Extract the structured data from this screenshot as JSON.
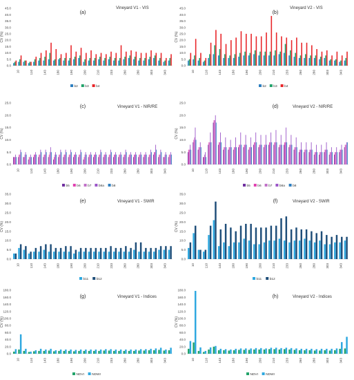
{
  "chart_data": [
    {
      "type": "bar",
      "label": "(a)",
      "title": "Vineyard V1  - VIS",
      "ylabel": "CV (%)",
      "ylim": [
        0,
        45
      ],
      "yticks": [
        "0.0",
        "5.0",
        "10.0",
        "15.0",
        "20.0",
        "25.0",
        "30.0",
        "35.0",
        "40.0",
        "45.0"
      ],
      "x_tick_labels": [
        "10",
        "110",
        "143",
        "180",
        "190",
        "200",
        "210",
        "233",
        "260",
        "280",
        "303",
        "343"
      ],
      "grid": false,
      "legend": "bottom",
      "series": [
        {
          "name": "b2",
          "color": "#2e7fc0",
          "values": [
            2,
            3,
            3,
            2,
            3,
            4,
            4,
            5,
            4,
            5,
            4,
            4,
            5,
            6,
            3,
            4,
            4,
            5,
            4,
            5,
            4,
            4,
            5,
            6,
            5,
            4,
            4,
            5,
            6,
            4,
            3,
            4
          ]
        },
        {
          "name": "b3",
          "color": "#22a36a",
          "values": [
            3,
            5,
            4,
            3,
            5,
            6,
            7,
            10,
            5,
            6,
            6,
            6,
            7,
            8,
            5,
            6,
            6,
            7,
            6,
            7,
            6,
            6,
            7,
            8,
            7,
            6,
            6,
            7,
            8,
            6,
            4,
            6
          ]
        },
        {
          "name": "b4",
          "color": "#e8262a",
          "values": [
            4,
            8,
            4,
            3,
            7,
            10,
            12,
            18,
            13,
            9,
            10,
            16,
            11,
            14,
            10,
            12,
            9,
            10,
            9,
            11,
            10,
            16,
            11,
            12,
            11,
            10,
            10,
            12,
            10,
            10,
            6,
            9
          ]
        }
      ]
    },
    {
      "type": "bar",
      "label": "(b)",
      "title": "Vineyard V2  - VIS",
      "ylabel": "CV (%)",
      "ylim": [
        0,
        45
      ],
      "yticks": [
        "0.0",
        "5.0",
        "10.0",
        "15.0",
        "20.0",
        "25.0",
        "30.0",
        "35.0",
        "40.0",
        "45.0"
      ],
      "x_tick_labels": [
        "10",
        "110",
        "143",
        "180",
        "190",
        "200",
        "210",
        "233",
        "260",
        "280",
        "303",
        "343"
      ],
      "grid": false,
      "legend": "bottom",
      "series": [
        {
          "name": "b2",
          "color": "#2e7fc0",
          "values": [
            4,
            5,
            4,
            3,
            6,
            9,
            8,
            6,
            6,
            6,
            7,
            8,
            8,
            9,
            8,
            8,
            8,
            8,
            9,
            10,
            8,
            7,
            6,
            6,
            6,
            6,
            5,
            6,
            4,
            4,
            3,
            4
          ]
        },
        {
          "name": "b3",
          "color": "#22a36a",
          "values": [
            5,
            8,
            6,
            4,
            9,
            16,
            13,
            9,
            8,
            9,
            10,
            11,
            10,
            12,
            11,
            11,
            11,
            12,
            11,
            17,
            12,
            10,
            8,
            9,
            8,
            8,
            7,
            8,
            5,
            5,
            4,
            6
          ]
        },
        {
          "name": "b4",
          "color": "#e8262a",
          "values": [
            10,
            21,
            10,
            6,
            18,
            28,
            25,
            17,
            20,
            22,
            27,
            25,
            25,
            23,
            23,
            26,
            39,
            26,
            23,
            22,
            20,
            22,
            18,
            18,
            16,
            13,
            11,
            12,
            8,
            11,
            8,
            11
          ]
        }
      ]
    },
    {
      "type": "bar",
      "label": "(c)",
      "title": "Vineyard V1 - NIR/RE",
      "ylabel": "CV (%)",
      "ylim": [
        0,
        25
      ],
      "yticks": [
        "0.0",
        "5.0",
        "10.0",
        "15.0",
        "20.0",
        "25.0"
      ],
      "x_tick_labels": [
        "10",
        "110",
        "143",
        "180",
        "190",
        "200",
        "210",
        "233",
        "260",
        "280",
        "303",
        "343"
      ],
      "grid": false,
      "legend": "bottom",
      "series": [
        {
          "name": "b5",
          "color": "#7030a0",
          "values": [
            3,
            3,
            3,
            2,
            3,
            3,
            3,
            3,
            2,
            3,
            3,
            3,
            3,
            3,
            2,
            3,
            3,
            3,
            3,
            3,
            3,
            3,
            3,
            3,
            3,
            3,
            3,
            3,
            4,
            3,
            3,
            3
          ]
        },
        {
          "name": "b6",
          "color": "#e040b0",
          "values": [
            3,
            4,
            3,
            3,
            4,
            4,
            4,
            4,
            3,
            4,
            4,
            4,
            4,
            4,
            3,
            4,
            4,
            4,
            4,
            4,
            4,
            4,
            4,
            4,
            4,
            4,
            4,
            4,
            5,
            4,
            3,
            4
          ]
        },
        {
          "name": "b7",
          "color": "#c070c8",
          "values": [
            3,
            4,
            4,
            3,
            4,
            4,
            4,
            5,
            4,
            4,
            4,
            4,
            4,
            4,
            4,
            4,
            4,
            4,
            4,
            4,
            4,
            4,
            4,
            4,
            4,
            4,
            4,
            4,
            5,
            4,
            4,
            4
          ]
        },
        {
          "name": "b8a",
          "color": "#9b55c8",
          "values": [
            4,
            6,
            5,
            4,
            5,
            6,
            6,
            7,
            5,
            6,
            6,
            6,
            5,
            6,
            5,
            5,
            5,
            6,
            5,
            6,
            5,
            5,
            6,
            5,
            5,
            5,
            5,
            6,
            8,
            6,
            5,
            5
          ]
        },
        {
          "name": "b8",
          "color": "#2e7fc0",
          "values": [
            3,
            5,
            4,
            3,
            4,
            5,
            5,
            5,
            4,
            5,
            5,
            5,
            4,
            5,
            4,
            4,
            4,
            5,
            4,
            5,
            4,
            4,
            5,
            4,
            4,
            4,
            4,
            5,
            6,
            5,
            4,
            4
          ]
        }
      ]
    },
    {
      "type": "bar",
      "label": "(d)",
      "title": "Vineyard V2 - NIR/RE",
      "ylabel": "CV (%)",
      "ylim": [
        0,
        25
      ],
      "yticks": [
        "0.0",
        "5.0",
        "10.0",
        "15.0",
        "20.0",
        "25.0"
      ],
      "x_tick_labels": [
        "10",
        "110",
        "143",
        "180",
        "190",
        "200",
        "210",
        "233",
        "260",
        "280",
        "303",
        "343"
      ],
      "grid": false,
      "legend": "bottom",
      "series": [
        {
          "name": "b5",
          "color": "#7030a0",
          "values": [
            5,
            9,
            6,
            3,
            8,
            17,
            8,
            6,
            6,
            6,
            7,
            7,
            6,
            8,
            7,
            7,
            8,
            8,
            7,
            8,
            7,
            6,
            5,
            5,
            5,
            4,
            4,
            5,
            4,
            4,
            5,
            7
          ]
        },
        {
          "name": "b6",
          "color": "#e040b0",
          "values": [
            6,
            10,
            7,
            3,
            9,
            18,
            9,
            7,
            7,
            7,
            8,
            8,
            7,
            9,
            8,
            8,
            9,
            9,
            8,
            9,
            8,
            7,
            6,
            6,
            6,
            5,
            5,
            6,
            5,
            5,
            6,
            8
          ]
        },
        {
          "name": "b7",
          "color": "#c070c8",
          "values": [
            6,
            11,
            7,
            4,
            9,
            18,
            9,
            7,
            7,
            7,
            8,
            8,
            7,
            9,
            8,
            8,
            9,
            9,
            8,
            9,
            8,
            7,
            6,
            6,
            6,
            5,
            5,
            6,
            5,
            5,
            6,
            8
          ]
        },
        {
          "name": "b8a",
          "color": "#9b55c8",
          "values": [
            8,
            15,
            9,
            5,
            13,
            20,
            13,
            11,
            10,
            11,
            13,
            12,
            11,
            13,
            12,
            12,
            13,
            14,
            12,
            15,
            12,
            11,
            9,
            9,
            9,
            8,
            8,
            9,
            7,
            7,
            8,
            9
          ]
        },
        {
          "name": "b8",
          "color": "#2e7fc0",
          "values": [
            6,
            10,
            7,
            3,
            9,
            17,
            9,
            7,
            7,
            7,
            8,
            8,
            7,
            9,
            8,
            8,
            9,
            9,
            8,
            9,
            8,
            7,
            6,
            6,
            6,
            5,
            5,
            6,
            5,
            5,
            6,
            9
          ]
        }
      ]
    },
    {
      "type": "bar",
      "label": "(e)",
      "title": "Vineyard V1 - SWIR",
      "ylabel": "CV (%)",
      "ylim": [
        0,
        35
      ],
      "yticks": [
        "0.0",
        "5.0",
        "10.0",
        "15.0",
        "20.0",
        "25.0",
        "30.0",
        "35.0"
      ],
      "x_tick_labels": [
        "10",
        "110",
        "143",
        "180",
        "190",
        "200",
        "210",
        "233",
        "260",
        "280",
        "303",
        "343"
      ],
      "grid": false,
      "legend": "bottom",
      "series": [
        {
          "name": "b11",
          "color": "#2ea8e0",
          "values": [
            3,
            6,
            5,
            3,
            4,
            4,
            5,
            4,
            4,
            4,
            4,
            4,
            3,
            4,
            4,
            4,
            4,
            4,
            4,
            4,
            4,
            4,
            4,
            4,
            5,
            4,
            4,
            4,
            4,
            5,
            5,
            5
          ]
        },
        {
          "name": "b12",
          "color": "#1f4e79",
          "values": [
            3,
            8,
            7,
            4,
            6,
            7,
            8,
            8,
            6,
            6,
            7,
            7,
            5,
            6,
            6,
            6,
            6,
            6,
            6,
            7,
            6,
            6,
            7,
            6,
            9,
            9,
            6,
            6,
            6,
            7,
            7,
            7
          ]
        }
      ]
    },
    {
      "type": "bar",
      "label": "(f)",
      "title": "Vineyard V2 - SWIR",
      "ylabel": "CV (%)",
      "ylim": [
        0,
        35
      ],
      "yticks": [
        "0.0",
        "5.0",
        "10.0",
        "15.0",
        "20.0",
        "25.0",
        "30.0",
        "35.0"
      ],
      "x_tick_labels": [
        "10",
        "110",
        "143",
        "180",
        "190",
        "200",
        "210",
        "233",
        "260",
        "280",
        "303",
        "343"
      ],
      "grid": false,
      "legend": "bottom",
      "series": [
        {
          "name": "b11",
          "color": "#2ea8e0",
          "values": [
            6,
            14,
            5,
            4,
            13,
            21,
            7,
            9,
            7,
            9,
            9,
            11,
            10,
            8,
            8,
            9,
            10,
            10,
            11,
            10,
            9,
            10,
            10,
            11,
            10,
            9,
            10,
            8,
            8,
            9,
            9,
            10
          ]
        },
        {
          "name": "b12",
          "color": "#1f4e79",
          "values": [
            9,
            18,
            5,
            5,
            18,
            31,
            16,
            19,
            17,
            15,
            18,
            19,
            19,
            17,
            17,
            17,
            18,
            18,
            22,
            23,
            16,
            17,
            16,
            16,
            15,
            14,
            15,
            13,
            12,
            13,
            12,
            12
          ]
        }
      ]
    },
    {
      "type": "bar",
      "label": "(g)",
      "title": "Vineyard V1 - Indices",
      "ylabel": "CV (%)",
      "ylim": [
        0,
        180
      ],
      "yticks": [
        "0.0",
        "20.0",
        "40.0",
        "60.0",
        "80.0",
        "100.0",
        "120.0",
        "140.0",
        "160.0",
        "180.0"
      ],
      "x_tick_labels": [
        "10",
        "110",
        "143",
        "180",
        "190",
        "200",
        "210",
        "233",
        "260",
        "280",
        "303",
        "343"
      ],
      "grid": false,
      "legend": "bottom",
      "series": [
        {
          "name": "NDVI",
          "color": "#22a36a",
          "values": [
            6,
            12,
            8,
            5,
            7,
            8,
            8,
            9,
            7,
            8,
            8,
            8,
            7,
            8,
            8,
            8,
            8,
            8,
            9,
            9,
            8,
            8,
            8,
            8,
            8,
            9,
            9,
            10,
            10,
            11,
            9,
            10
          ]
        },
        {
          "name": "NDWI",
          "color": "#2ea8e0",
          "values": [
            13,
            55,
            14,
            6,
            10,
            14,
            12,
            14,
            10,
            12,
            12,
            12,
            11,
            12,
            12,
            12,
            12,
            12,
            13,
            13,
            12,
            12,
            12,
            12,
            12,
            13,
            13,
            14,
            15,
            17,
            12,
            17
          ]
        }
      ]
    },
    {
      "type": "bar",
      "label": "(h)",
      "title": "Vineyard V2 - Indices",
      "ylabel": "CV (%)",
      "ylim": [
        0,
        180
      ],
      "yticks": [
        "0.0",
        "20.0",
        "40.0",
        "60.0",
        "80.0",
        "100.0",
        "120.0",
        "140.0",
        "160.0",
        "180.0"
      ],
      "x_tick_labels": [
        "10",
        "110",
        "143",
        "180",
        "190",
        "200",
        "210",
        "233",
        "260",
        "280",
        "303",
        "343"
      ],
      "grid": false,
      "legend": "bottom",
      "series": [
        {
          "name": "NDVI",
          "color": "#22a36a",
          "values": [
            14,
            32,
            8,
            5,
            12,
            20,
            10,
            10,
            9,
            10,
            11,
            11,
            11,
            12,
            12,
            12,
            13,
            13,
            12,
            13,
            12,
            11,
            10,
            10,
            10,
            9,
            9,
            10,
            9,
            10,
            14,
            15
          ]
        },
        {
          "name": "NDWI",
          "color": "#2ea8e0",
          "values": [
            36,
            178,
            18,
            8,
            18,
            22,
            14,
            13,
            12,
            14,
            15,
            15,
            15,
            16,
            16,
            15,
            17,
            17,
            16,
            17,
            16,
            15,
            14,
            14,
            14,
            13,
            14,
            14,
            14,
            15,
            33,
            48
          ]
        }
      ]
    }
  ]
}
